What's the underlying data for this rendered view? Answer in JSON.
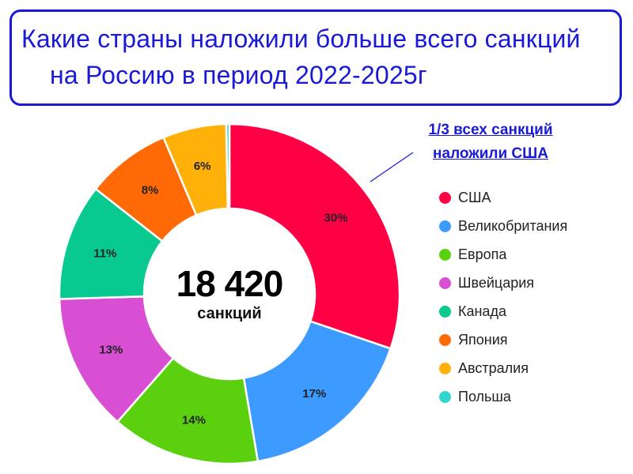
{
  "title": {
    "line1": "Какие страны наложили больше всего санкций",
    "line2": "на Россию в период 2022-2025г"
  },
  "center": {
    "total": "18 420",
    "unit": "санкций"
  },
  "annotation": {
    "line1": "1/3 всех санкций",
    "line2": "наложили США"
  },
  "colors": {
    "title": "#1a1ad6",
    "annotation": "#1a1ad6"
  },
  "chart_data": {
    "type": "pie",
    "variant": "donut",
    "legend_position": "right",
    "slices": [
      {
        "name": "США",
        "value": 30,
        "label": "30%",
        "color": "#ff0045"
      },
      {
        "name": "Великобритания",
        "value": 17,
        "label": "17%",
        "color": "#3d9bff"
      },
      {
        "name": "Европа",
        "value": 14,
        "label": "14%",
        "color": "#5ad00f"
      },
      {
        "name": "Швейцария",
        "value": 13,
        "label": "13%",
        "color": "#d94fd3"
      },
      {
        "name": "Канада",
        "value": 11,
        "label": "11%",
        "color": "#08c98f"
      },
      {
        "name": "Япония",
        "value": 8,
        "label": "8%",
        "color": "#ff6a06"
      },
      {
        "name": "Австралия",
        "value": 6,
        "label": "6%",
        "color": "#ffb10a"
      },
      {
        "name": "Польша",
        "value": 0.3,
        "label": "",
        "color": "#31d6cf"
      }
    ]
  }
}
